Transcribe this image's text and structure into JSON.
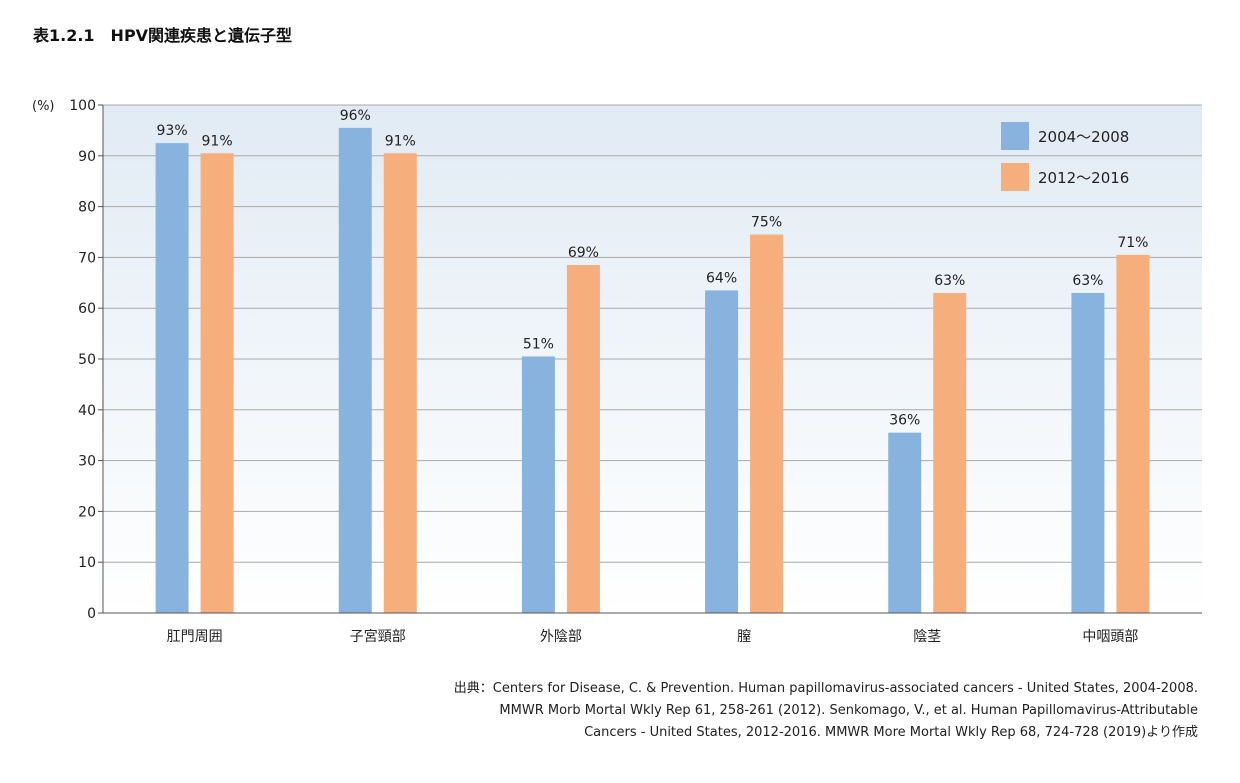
{
  "title": "表1.2.1　HPV関連疾患と遺伝子型",
  "source": {
    "lines": [
      "出典：Centers for Disease, C. & Prevention. Human papillomavirus-associated cancers - United States, 2004-2008.",
      "MMWR Morb Mortal Wkly Rep 61, 258-261 (2012). Senkomago, V., et al. Human Papillomavirus-Attributable",
      "Cancers - United States, 2012-2016. MMWR More Mortal Wkly Rep 68, 724-728 (2019)より作成"
    ]
  },
  "chart_data": {
    "type": "bar",
    "title": "",
    "xlabel": "",
    "ylabel": "(%)",
    "ylim": [
      0,
      100
    ],
    "yticks": [
      0,
      10,
      20,
      30,
      40,
      50,
      60,
      70,
      80,
      90,
      100
    ],
    "categories": [
      "肛門周囲",
      "子宮頸部",
      "外陰部",
      "膣",
      "陰茎",
      "中咽頭部"
    ],
    "series": [
      {
        "name": "2004〜2008",
        "color": "#89b3df",
        "values": [
          92.5,
          95.5,
          50.5,
          63.5,
          35.5,
          63
        ],
        "labels": [
          "93%",
          "96%",
          "51%",
          "64%",
          "36%",
          "63%"
        ]
      },
      {
        "name": "2012〜2016",
        "color": "#f5ae7c",
        "values": [
          90.5,
          90.5,
          68.5,
          74.5,
          63,
          70.5
        ],
        "labels": [
          "91%",
          "91%",
          "69%",
          "75%",
          "63%",
          "71%"
        ]
      }
    ],
    "grid": true,
    "legend_position": "top-right",
    "background_gradient": [
      "#e1ebf4",
      "#ffffff"
    ]
  }
}
